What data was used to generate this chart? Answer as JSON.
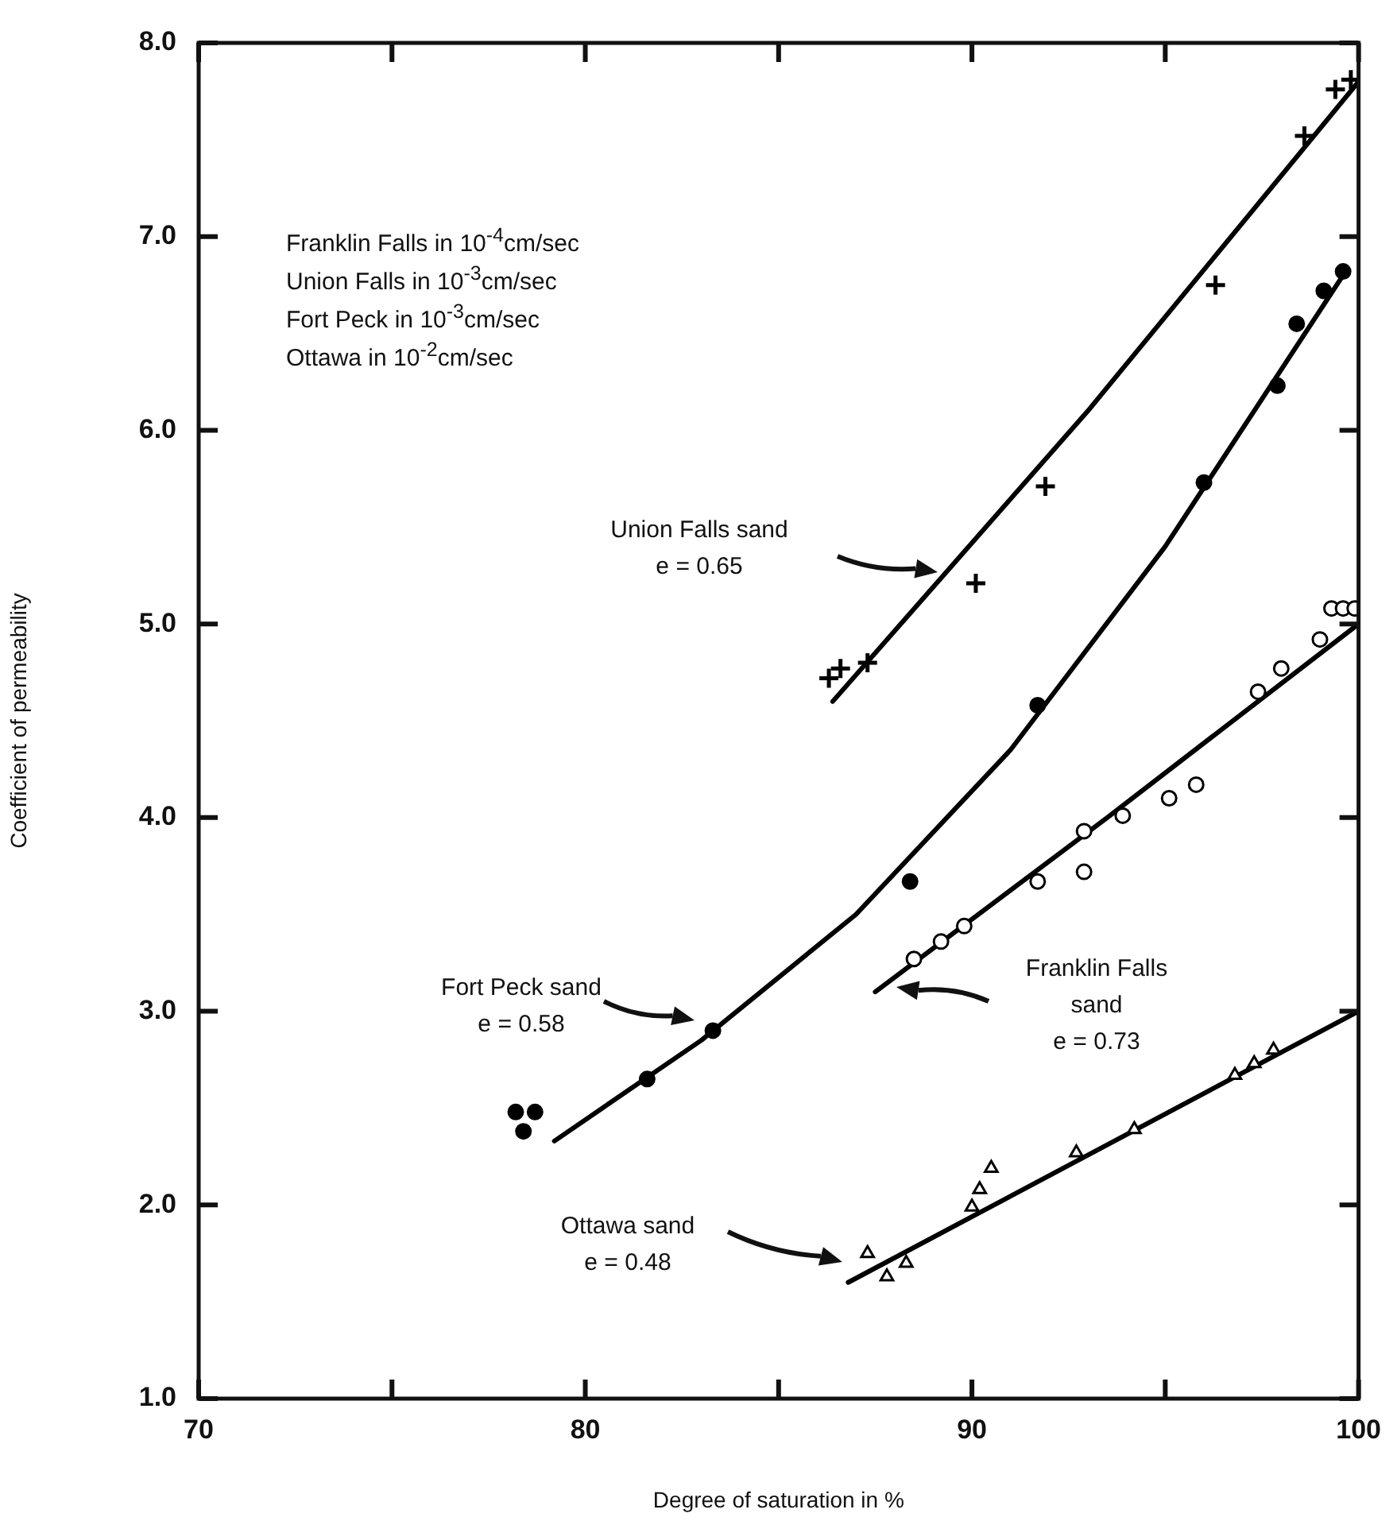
{
  "chart_data": {
    "type": "scatter",
    "xlabel": "Degree of saturation in %",
    "ylabel": "Coefficient of permeability",
    "xlim": [
      70,
      100
    ],
    "ylim": [
      1,
      8
    ],
    "xticks": [
      70,
      {
        "value": 75,
        "label": null
      },
      80,
      {
        "value": 85,
        "label": null
      },
      90,
      {
        "value": 95,
        "label": null
      },
      100
    ],
    "yticks": [
      {
        "value": 1,
        "label": "1.0"
      },
      {
        "value": 2,
        "label": "2.0"
      },
      {
        "value": 3,
        "label": "3.0"
      },
      {
        "value": 4,
        "label": "4.0"
      },
      {
        "value": 5,
        "label": "5.0"
      },
      {
        "value": 6,
        "label": "6.0"
      },
      {
        "value": 7,
        "label": "7.0"
      },
      {
        "value": 8,
        "label": "8.0"
      }
    ],
    "grid": false,
    "legend": false,
    "annotations": [
      "Franklin Falls in 10$^{-4}$cm/sec",
      "Union Falls in 10$^{-3}$cm/sec",
      "Fort Peck in 10$^{-3}$cm/sec",
      "Ottawa in 10$^{-2}$cm/sec",
      "Union Falls sand\ne = 0.65",
      "Fort Peck sand\ne = 0.58",
      "Franklin Falls\nsand\ne = 0.73",
      "Ottawa sand\ne = 0.48"
    ],
    "series": [
      {
        "type": "scatter",
        "marker": "cross",
        "color": "#000000",
        "x": [
          86.3,
          86.6,
          87.3,
          90.1,
          91.9,
          96.3,
          98.6,
          99.4,
          99.8
        ],
        "values": [
          4.72,
          4.77,
          4.8,
          5.21,
          5.71,
          6.75,
          7.52,
          7.76,
          7.81
        ]
      },
      {
        "type": "line",
        "marker": "none",
        "line_style": "solid",
        "color": "#000000",
        "x": [
          86.4,
          93,
          100
        ],
        "values": [
          4.6,
          6.1,
          7.8
        ]
      },
      {
        "type": "scatter",
        "marker": "circle",
        "color": "#000000",
        "x": [
          78.2,
          78.7,
          78.4,
          81.6,
          83.3,
          88.4,
          91.7,
          96.0,
          97.9,
          98.4,
          99.1,
          99.6
        ],
        "values": [
          2.48,
          2.48,
          2.38,
          2.65,
          2.9,
          3.67,
          4.58,
          5.73,
          6.23,
          6.55,
          6.72,
          6.82
        ]
      },
      {
        "type": "line",
        "marker": "none",
        "line_style": "solid",
        "color": "#000000",
        "x": [
          79.2,
          83,
          87,
          91,
          95,
          99.6
        ],
        "values": [
          2.33,
          2.85,
          3.5,
          4.35,
          5.4,
          6.8
        ]
      },
      {
        "type": "scatter",
        "marker": "circle",
        "color": "#ffffff",
        "x": [
          88.5,
          89.2,
          89.8,
          91.7,
          92.9,
          92.9,
          93.9,
          95.1,
          95.8,
          97.4,
          98.0,
          99.0,
          99.3,
          99.6,
          99.9
        ],
        "values": [
          3.27,
          3.36,
          3.44,
          3.67,
          3.93,
          3.72,
          4.01,
          4.1,
          4.17,
          4.65,
          4.77,
          4.92,
          5.08,
          5.08,
          5.08
        ]
      },
      {
        "type": "line",
        "marker": "none",
        "line_style": "solid",
        "color": "#000000",
        "x": [
          87.5,
          93.5,
          100
        ],
        "values": [
          3.1,
          4.0,
          5.0
        ]
      },
      {
        "type": "scatter",
        "marker": "triangle",
        "color": "#ffffff",
        "x": [
          87.3,
          87.8,
          88.3,
          90.0,
          90.2,
          90.5,
          92.7,
          94.2,
          96.8,
          97.3,
          97.8
        ],
        "values": [
          1.75,
          1.63,
          1.7,
          1.99,
          2.08,
          2.19,
          2.27,
          2.39,
          2.67,
          2.73,
          2.8
        ]
      },
      {
        "type": "line",
        "marker": "none",
        "line_style": "solid",
        "color": "#000000",
        "x": [
          86.8,
          100
        ],
        "values": [
          1.6,
          3.0
        ]
      }
    ]
  }
}
